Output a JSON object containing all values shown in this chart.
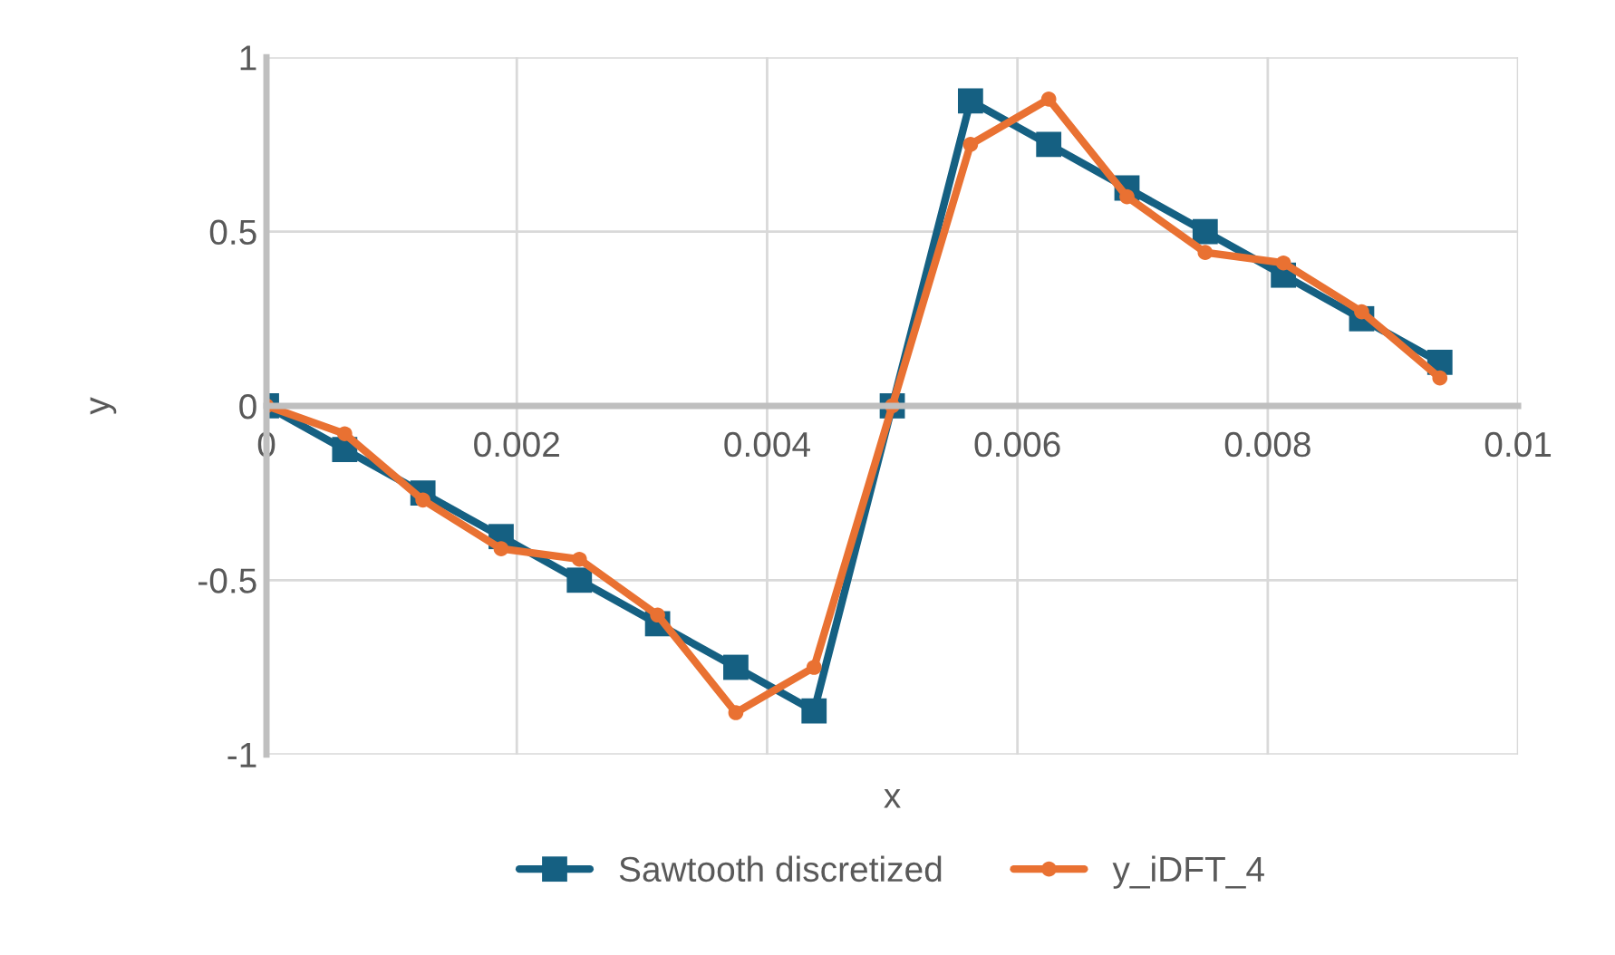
{
  "chart_data": {
    "type": "line",
    "xlabel": "x",
    "ylabel": "y",
    "x": [
      0,
      0.000625,
      0.00125,
      0.001875,
      0.0025,
      0.003125,
      0.00375,
      0.004375,
      0.005,
      0.005625,
      0.00625,
      0.006875,
      0.0075,
      0.008125,
      0.00875,
      0.009375
    ],
    "series": [
      {
        "name": "Sawtooth discretized",
        "color": "#156082",
        "marker": "square",
        "values": [
          0,
          -0.125,
          -0.25,
          -0.375,
          -0.5,
          -0.625,
          -0.75,
          -0.875,
          0,
          0.875,
          0.75,
          0.625,
          0.5,
          0.375,
          0.25,
          0.125
        ]
      },
      {
        "name": "y_iDFT_4",
        "color": "#e97132",
        "marker": "circle",
        "values": [
          0,
          -0.08,
          -0.27,
          -0.41,
          -0.44,
          -0.6,
          -0.88,
          -0.75,
          0,
          0.75,
          0.88,
          0.6,
          0.44,
          0.41,
          0.27,
          0.08
        ]
      }
    ],
    "xlim": [
      0,
      0.01
    ],
    "xticks": [
      0,
      0.002,
      0.004,
      0.006,
      0.008,
      0.01
    ],
    "ylim": [
      -1,
      1
    ],
    "yticks": [
      -1,
      -0.5,
      0,
      0.5,
      1
    ],
    "grid": true,
    "legend": "bottom",
    "line_style": "solid"
  }
}
